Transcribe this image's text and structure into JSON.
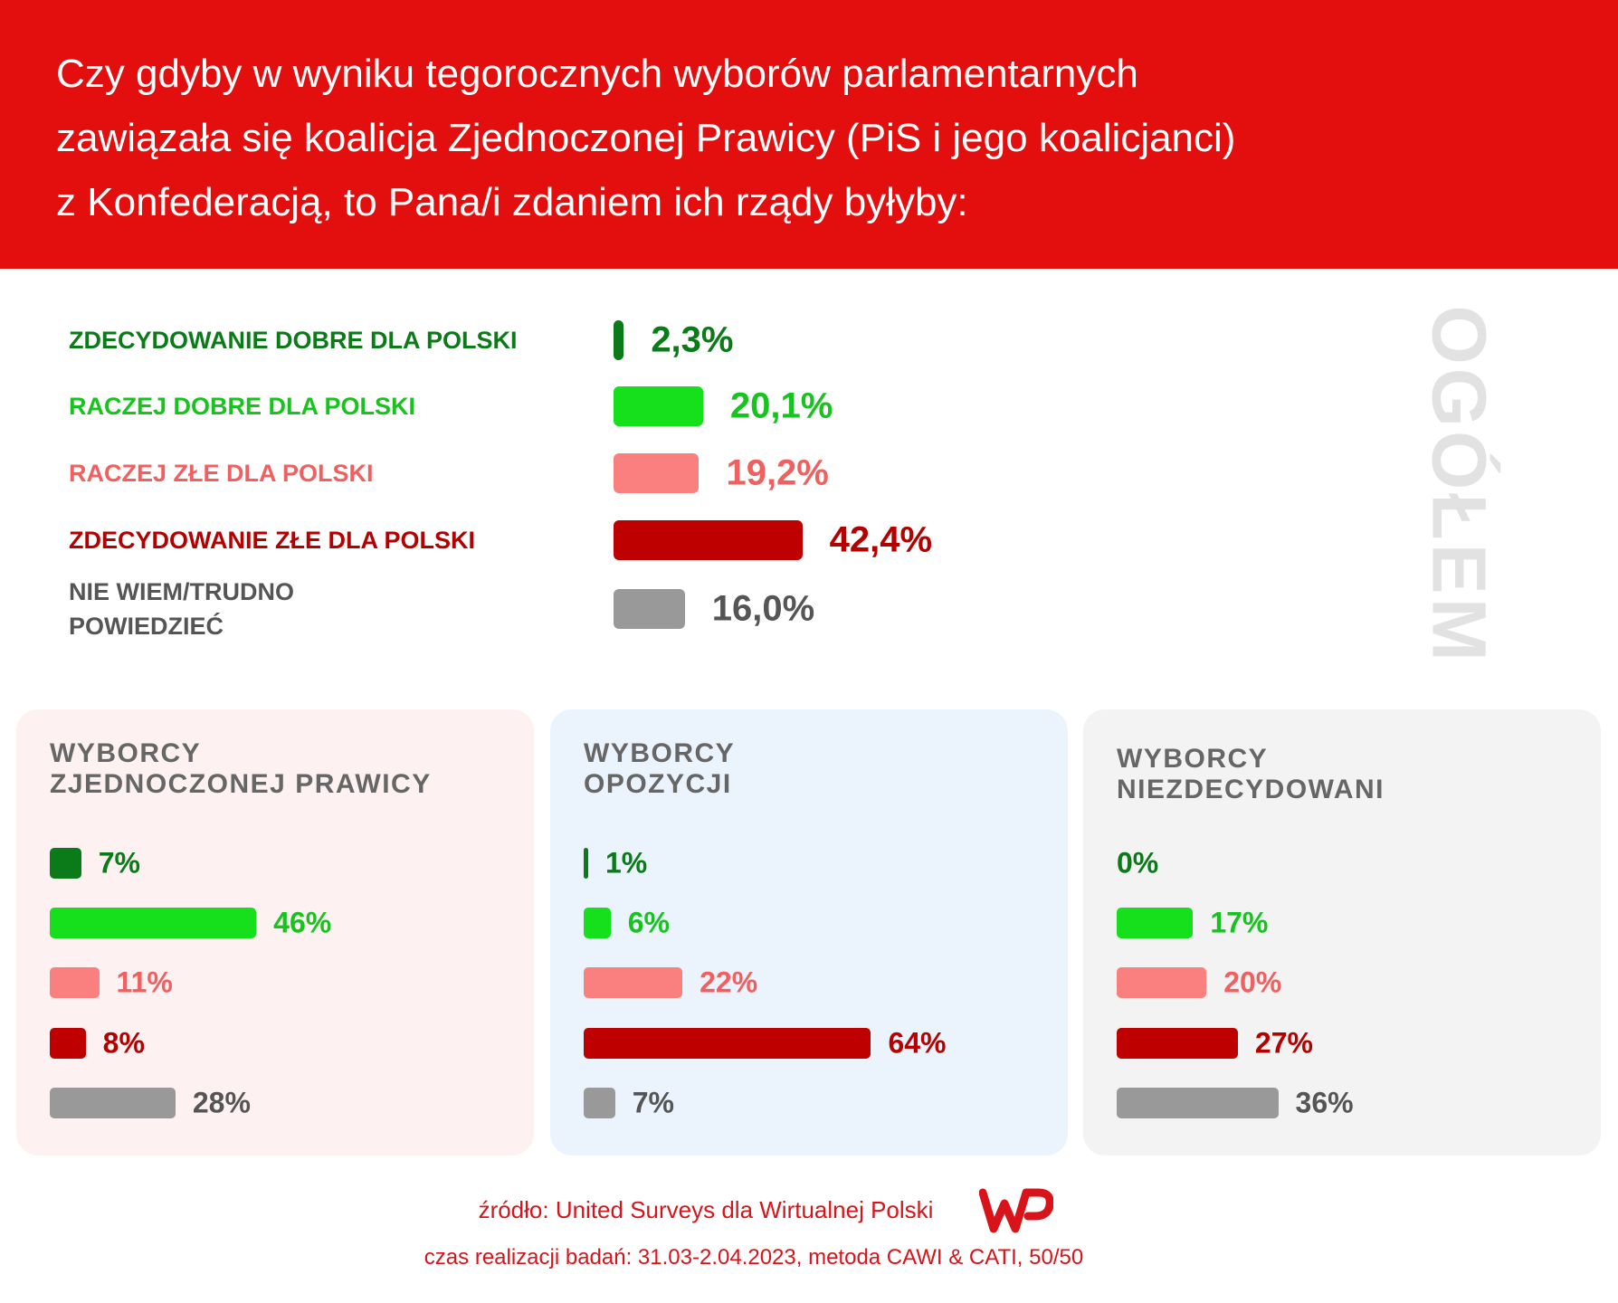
{
  "title": "Czy gdyby w wyniku tegorocznych wyborów parlamentarnych\nzawiązała się koalicja Zjednoczonej Prawicy (PiS i jego koalicjanci)\nz Konfederacją, to Pana/i zdaniem ich rządy byłyby:",
  "chart_data": [
    {
      "type": "bar",
      "title": "OGÓŁEM",
      "categories": [
        "ZDECYDOWANIE DOBRE DLA POLSKI",
        "RACZEJ DOBRE DLA POLSKI",
        "RACZEJ ZŁE DLA POLSKI",
        "ZDECYDOWANIE ZŁE DLA POLSKI",
        "NIE WIEM/TRUDNO\nPOWIEDZIEĆ"
      ],
      "values": [
        2.3,
        20.1,
        19.2,
        42.4,
        16.0
      ],
      "value_labels": [
        "2,3%",
        "20,1%",
        "19,2%",
        "42,4%",
        "16,0%"
      ],
      "colors": [
        "#0b7a18",
        "#16e01c",
        "#fa8080",
        "#bf0000",
        "#999999"
      ],
      "text_colors": [
        "#0b7a18",
        "#17c31d",
        "#f06060",
        "#b50000",
        "#555555"
      ]
    },
    {
      "type": "bar",
      "title": "WYBORCY\nZJEDNOCZONEJ PRAWICY",
      "values": [
        7,
        46,
        11,
        8,
        28
      ],
      "value_labels": [
        "7%",
        "46%",
        "11%",
        "8%",
        "28%"
      ],
      "colors": [
        "#0b7a18",
        "#16e01c",
        "#fa8080",
        "#bf0000",
        "#999999"
      ],
      "text_colors": [
        "#0b7a18",
        "#17c31d",
        "#f06060",
        "#b50000",
        "#555555"
      ],
      "background": "#fdf1f1"
    },
    {
      "type": "bar",
      "title": "WYBORCY\nOPOZYCJI",
      "values": [
        1,
        6,
        22,
        64,
        7
      ],
      "value_labels": [
        "1%",
        "6%",
        "22%",
        "64%",
        "7%"
      ],
      "colors": [
        "#0b7a18",
        "#16e01c",
        "#fa8080",
        "#bf0000",
        "#999999"
      ],
      "text_colors": [
        "#0b7a18",
        "#17c31d",
        "#f06060",
        "#b50000",
        "#555555"
      ],
      "background": "#ebf3fd"
    },
    {
      "type": "bar",
      "title": "WYBORCY\nNIEZDECYDOWANI",
      "values": [
        0,
        17,
        20,
        27,
        36
      ],
      "value_labels": [
        "0%",
        "17%",
        "20%",
        "27%",
        "36%"
      ],
      "colors": [
        "#0b7a18",
        "#16e01c",
        "#fa8080",
        "#bf0000",
        "#999999"
      ],
      "text_colors": [
        "#0b7a18",
        "#17c31d",
        "#f06060",
        "#b50000",
        "#555555"
      ],
      "background": "#f3f3f3"
    }
  ],
  "source": "źródło: United Surveys dla Wirtualnej Polski",
  "method": "czas realizacji badań: 31.03-2.04.2023, metoda CAWI & CATI, 50/50"
}
